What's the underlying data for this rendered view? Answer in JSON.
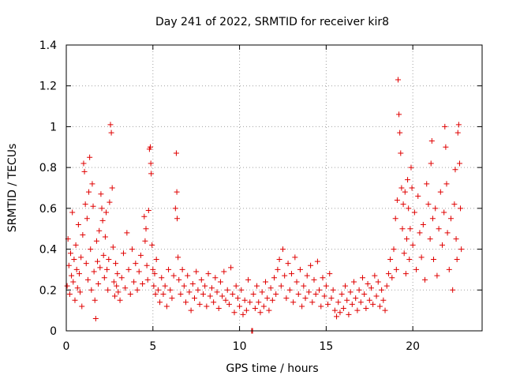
{
  "chart_data": {
    "type": "scatter",
    "title": "Day 241 of 2022, SRMTID for receiver kir8",
    "xlabel": "GPS time / hours",
    "ylabel": "SRMTID / TECUs",
    "xlim": [
      0,
      24
    ],
    "ylim": [
      0,
      1.4
    ],
    "xticks": [
      0,
      5,
      10,
      15,
      20
    ],
    "xtick_labels": [
      "0",
      "5",
      "10",
      "15",
      "20"
    ],
    "yticks": [
      0,
      0.2,
      0.4,
      0.6,
      0.8,
      1.0,
      1.2,
      1.4
    ],
    "ytick_labels": [
      "0",
      "0.2",
      "0.4",
      "0.6",
      "0.8",
      "1",
      "1.2",
      "1.4"
    ],
    "grid": true,
    "marker": "+",
    "color": "#e00000",
    "series": [
      {
        "name": "SRMTID",
        "points": [
          [
            0.05,
            0.22
          ],
          [
            0.1,
            0.45
          ],
          [
            0.15,
            0.32
          ],
          [
            0.2,
            0.18
          ],
          [
            0.25,
            0.38
          ],
          [
            0.3,
            0.27
          ],
          [
            0.35,
            0.58
          ],
          [
            0.4,
            0.24
          ],
          [
            0.45,
            0.35
          ],
          [
            0.5,
            0.15
          ],
          [
            0.55,
            0.42
          ],
          [
            0.6,
            0.3
          ],
          [
            0.65,
            0.21
          ],
          [
            0.7,
            0.52
          ],
          [
            0.75,
            0.28
          ],
          [
            0.8,
            0.19
          ],
          [
            0.85,
            0.36
          ],
          [
            0.9,
            0.12
          ],
          [
            0.95,
            0.47
          ],
          [
            1.0,
            0.82
          ],
          [
            1.05,
            0.78
          ],
          [
            1.1,
            0.62
          ],
          [
            1.15,
            0.33
          ],
          [
            1.2,
            0.55
          ],
          [
            1.25,
            0.25
          ],
          [
            1.3,
            0.68
          ],
          [
            1.35,
            0.85
          ],
          [
            1.4,
            0.4
          ],
          [
            1.45,
            0.2
          ],
          [
            1.5,
            0.72
          ],
          [
            1.55,
            0.61
          ],
          [
            1.6,
            0.29
          ],
          [
            1.65,
            0.15
          ],
          [
            1.7,
            0.06
          ],
          [
            1.75,
            0.44
          ],
          [
            1.8,
            0.34
          ],
          [
            1.85,
            0.23
          ],
          [
            1.9,
            0.49
          ],
          [
            1.95,
            0.31
          ],
          [
            2.0,
            0.67
          ],
          [
            2.05,
            0.6
          ],
          [
            2.1,
            0.54
          ],
          [
            2.15,
            0.37
          ],
          [
            2.2,
            0.26
          ],
          [
            2.25,
            0.46
          ],
          [
            2.3,
            0.58
          ],
          [
            2.35,
            0.3
          ],
          [
            2.4,
            0.2
          ],
          [
            2.45,
            0.35
          ],
          [
            2.5,
            0.63
          ],
          [
            2.55,
            1.01
          ],
          [
            2.6,
            0.97
          ],
          [
            2.65,
            0.7
          ],
          [
            2.7,
            0.41
          ],
          [
            2.75,
            0.24
          ],
          [
            2.8,
            0.17
          ],
          [
            2.85,
            0.33
          ],
          [
            2.9,
            0.22
          ],
          [
            2.95,
            0.28
          ],
          [
            3.0,
            0.19
          ],
          [
            3.1,
            0.15
          ],
          [
            3.2,
            0.26
          ],
          [
            3.3,
            0.38
          ],
          [
            3.4,
            0.21
          ],
          [
            3.5,
            0.48
          ],
          [
            3.6,
            0.3
          ],
          [
            3.7,
            0.18
          ],
          [
            3.8,
            0.4
          ],
          [
            3.9,
            0.24
          ],
          [
            4.0,
            0.33
          ],
          [
            4.1,
            0.2
          ],
          [
            4.2,
            0.29
          ],
          [
            4.3,
            0.37
          ],
          [
            4.4,
            0.23
          ],
          [
            4.5,
            0.56
          ],
          [
            4.55,
            0.44
          ],
          [
            4.6,
            0.5
          ],
          [
            4.65,
            0.32
          ],
          [
            4.7,
            0.25
          ],
          [
            4.75,
            0.59
          ],
          [
            4.8,
            0.89
          ],
          [
            4.85,
            0.9
          ],
          [
            4.88,
            0.82
          ],
          [
            4.9,
            0.77
          ],
          [
            4.95,
            0.42
          ],
          [
            5.0,
            0.3
          ],
          [
            5.05,
            0.22
          ],
          [
            5.1,
            0.28
          ],
          [
            5.15,
            0.18
          ],
          [
            5.2,
            0.35
          ],
          [
            5.3,
            0.2
          ],
          [
            5.4,
            0.14
          ],
          [
            5.5,
            0.26
          ],
          [
            5.6,
            0.18
          ],
          [
            5.7,
            0.22
          ],
          [
            5.8,
            0.12
          ],
          [
            5.9,
            0.3
          ],
          [
            6.0,
            0.2
          ],
          [
            6.1,
            0.16
          ],
          [
            6.2,
            0.27
          ],
          [
            6.3,
            0.6
          ],
          [
            6.35,
            0.87
          ],
          [
            6.38,
            0.68
          ],
          [
            6.4,
            0.55
          ],
          [
            6.45,
            0.36
          ],
          [
            6.5,
            0.25
          ],
          [
            6.6,
            0.18
          ],
          [
            6.7,
            0.3
          ],
          [
            6.8,
            0.22
          ],
          [
            6.9,
            0.14
          ],
          [
            7.0,
            0.27
          ],
          [
            7.1,
            0.19
          ],
          [
            7.2,
            0.1
          ],
          [
            7.3,
            0.23
          ],
          [
            7.4,
            0.16
          ],
          [
            7.5,
            0.29
          ],
          [
            7.6,
            0.2
          ],
          [
            7.7,
            0.13
          ],
          [
            7.8,
            0.25
          ],
          [
            7.9,
            0.18
          ],
          [
            8.0,
            0.22
          ],
          [
            8.1,
            0.12
          ],
          [
            8.2,
            0.28
          ],
          [
            8.3,
            0.17
          ],
          [
            8.4,
            0.21
          ],
          [
            8.5,
            0.14
          ],
          [
            8.6,
            0.26
          ],
          [
            8.7,
            0.19
          ],
          [
            8.8,
            0.11
          ],
          [
            8.9,
            0.24
          ],
          [
            9.0,
            0.17
          ],
          [
            9.1,
            0.29
          ],
          [
            9.2,
            0.15
          ],
          [
            9.3,
            0.2
          ],
          [
            9.4,
            0.13
          ],
          [
            9.5,
            0.31
          ],
          [
            9.6,
            0.18
          ],
          [
            9.7,
            0.09
          ],
          [
            9.8,
            0.22
          ],
          [
            9.9,
            0.16
          ],
          [
            10.0,
            0.12
          ],
          [
            10.1,
            0.2
          ],
          [
            10.2,
            0.08
          ],
          [
            10.3,
            0.15
          ],
          [
            10.4,
            0.1
          ],
          [
            10.5,
            0.25
          ],
          [
            10.6,
            0.14
          ],
          [
            10.7,
            0.0
          ],
          [
            10.75,
            0.0
          ],
          [
            10.8,
            0.18
          ],
          [
            10.9,
            0.11
          ],
          [
            11.0,
            0.22
          ],
          [
            11.1,
            0.14
          ],
          [
            11.2,
            0.09
          ],
          [
            11.3,
            0.19
          ],
          [
            11.4,
            0.12
          ],
          [
            11.5,
            0.24
          ],
          [
            11.6,
            0.16
          ],
          [
            11.7,
            0.1
          ],
          [
            11.8,
            0.21
          ],
          [
            11.9,
            0.15
          ],
          [
            12.0,
            0.26
          ],
          [
            12.1,
            0.18
          ],
          [
            12.2,
            0.3
          ],
          [
            12.3,
            0.35
          ],
          [
            12.4,
            0.22
          ],
          [
            12.5,
            0.4
          ],
          [
            12.6,
            0.27
          ],
          [
            12.7,
            0.16
          ],
          [
            12.8,
            0.33
          ],
          [
            12.9,
            0.2
          ],
          [
            13.0,
            0.28
          ],
          [
            13.1,
            0.14
          ],
          [
            13.2,
            0.36
          ],
          [
            13.3,
            0.24
          ],
          [
            13.4,
            0.18
          ],
          [
            13.5,
            0.3
          ],
          [
            13.6,
            0.12
          ],
          [
            13.7,
            0.22
          ],
          [
            13.8,
            0.16
          ],
          [
            13.9,
            0.27
          ],
          [
            14.0,
            0.19
          ],
          [
            14.1,
            0.32
          ],
          [
            14.2,
            0.14
          ],
          [
            14.3,
            0.25
          ],
          [
            14.4,
            0.18
          ],
          [
            14.5,
            0.34
          ],
          [
            14.6,
            0.2
          ],
          [
            14.7,
            0.12
          ],
          [
            14.8,
            0.26
          ],
          [
            14.9,
            0.17
          ],
          [
            15.0,
            0.22
          ],
          [
            15.1,
            0.13
          ],
          [
            15.2,
            0.28
          ],
          [
            15.3,
            0.16
          ],
          [
            15.4,
            0.2
          ],
          [
            15.5,
            0.1
          ],
          [
            15.6,
            0.07
          ],
          [
            15.7,
            0.14
          ],
          [
            15.8,
            0.09
          ],
          [
            15.9,
            0.18
          ],
          [
            16.0,
            0.11
          ],
          [
            16.1,
            0.22
          ],
          [
            16.2,
            0.15
          ],
          [
            16.3,
            0.08
          ],
          [
            16.4,
            0.19
          ],
          [
            16.5,
            0.13
          ],
          [
            16.6,
            0.24
          ],
          [
            16.7,
            0.16
          ],
          [
            16.8,
            0.1
          ],
          [
            16.9,
            0.2
          ],
          [
            17.0,
            0.14
          ],
          [
            17.1,
            0.26
          ],
          [
            17.2,
            0.18
          ],
          [
            17.3,
            0.11
          ],
          [
            17.4,
            0.23
          ],
          [
            17.5,
            0.15
          ],
          [
            17.6,
            0.21
          ],
          [
            17.7,
            0.13
          ],
          [
            17.8,
            0.27
          ],
          [
            17.9,
            0.17
          ],
          [
            18.0,
            0.24
          ],
          [
            18.1,
            0.12
          ],
          [
            18.2,
            0.2
          ],
          [
            18.3,
            0.15
          ],
          [
            18.4,
            0.1
          ],
          [
            18.5,
            0.22
          ],
          [
            18.6,
            0.28
          ],
          [
            18.7,
            0.35
          ],
          [
            18.8,
            0.26
          ],
          [
            18.9,
            0.4
          ],
          [
            19.0,
            0.55
          ],
          [
            19.05,
            0.3
          ],
          [
            19.1,
            0.64
          ],
          [
            19.15,
            1.23
          ],
          [
            19.2,
            1.06
          ],
          [
            19.25,
            0.97
          ],
          [
            19.3,
            0.87
          ],
          [
            19.35,
            0.7
          ],
          [
            19.4,
            0.5
          ],
          [
            19.45,
            0.62
          ],
          [
            19.5,
            0.38
          ],
          [
            19.55,
            0.68
          ],
          [
            19.6,
            0.28
          ],
          [
            19.65,
            0.45
          ],
          [
            19.7,
            0.74
          ],
          [
            19.75,
            0.6
          ],
          [
            19.8,
            0.35
          ],
          [
            19.85,
            0.5
          ],
          [
            19.9,
            0.8
          ],
          [
            19.95,
            0.7
          ],
          [
            20.0,
            0.42
          ],
          [
            20.1,
            0.58
          ],
          [
            20.2,
            0.3
          ],
          [
            20.3,
            0.66
          ],
          [
            20.4,
            0.48
          ],
          [
            20.5,
            0.36
          ],
          [
            20.6,
            0.52
          ],
          [
            20.7,
            0.25
          ],
          [
            20.8,
            0.72
          ],
          [
            20.9,
            0.62
          ],
          [
            21.0,
            0.45
          ],
          [
            21.05,
            0.82
          ],
          [
            21.1,
            0.93
          ],
          [
            21.15,
            0.55
          ],
          [
            21.2,
            0.35
          ],
          [
            21.3,
            0.6
          ],
          [
            21.4,
            0.27
          ],
          [
            21.5,
            0.5
          ],
          [
            21.6,
            0.68
          ],
          [
            21.7,
            0.42
          ],
          [
            21.8,
            0.58
          ],
          [
            21.85,
            1.0
          ],
          [
            21.9,
            0.9
          ],
          [
            21.95,
            0.72
          ],
          [
            22.0,
            0.48
          ],
          [
            22.1,
            0.3
          ],
          [
            22.2,
            0.55
          ],
          [
            22.3,
            0.2
          ],
          [
            22.4,
            0.62
          ],
          [
            22.45,
            0.79
          ],
          [
            22.5,
            0.45
          ],
          [
            22.55,
            0.35
          ],
          [
            22.6,
            0.97
          ],
          [
            22.65,
            1.01
          ],
          [
            22.7,
            0.82
          ],
          [
            22.75,
            0.6
          ],
          [
            22.8,
            0.4
          ]
        ]
      }
    ]
  }
}
